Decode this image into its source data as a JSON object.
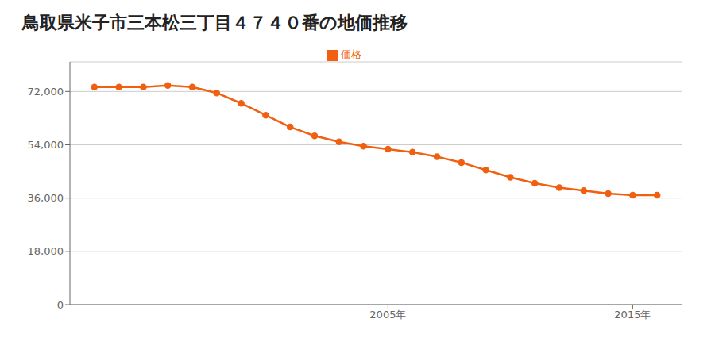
{
  "chart_data": {
    "type": "line",
    "title": "鳥取県米子市三本松三丁目４７４０番の地価推移",
    "x": [
      1993,
      1994,
      1995,
      1996,
      1997,
      1998,
      1999,
      2000,
      2001,
      2002,
      2003,
      2004,
      2005,
      2006,
      2007,
      2008,
      2009,
      2010,
      2011,
      2012,
      2013,
      2014,
      2015,
      2016
    ],
    "series": [
      {
        "name": "価格",
        "color": "#f06010",
        "marker": "circle",
        "values": [
          73500,
          73500,
          73500,
          74000,
          73500,
          71500,
          68000,
          64000,
          60000,
          57000,
          55000,
          53500,
          52500,
          51500,
          50000,
          48000,
          45500,
          43000,
          41000,
          39500,
          38500,
          37500,
          37000,
          37000
        ]
      }
    ],
    "xlim": [
      1992,
      2017
    ],
    "xticks": [
      {
        "value": 2005,
        "label": "2005年"
      },
      {
        "value": 2015,
        "label": "2015年"
      }
    ],
    "ylim": [
      0,
      82000
    ],
    "yticks": [
      0,
      {
        "value": 18000,
        "label": "18,000"
      },
      {
        "value": 36000,
        "label": "36,000"
      },
      {
        "value": 54000,
        "label": "54,000"
      },
      {
        "value": 72000,
        "label": "72,000"
      }
    ],
    "grid": "y",
    "legend": "top"
  }
}
